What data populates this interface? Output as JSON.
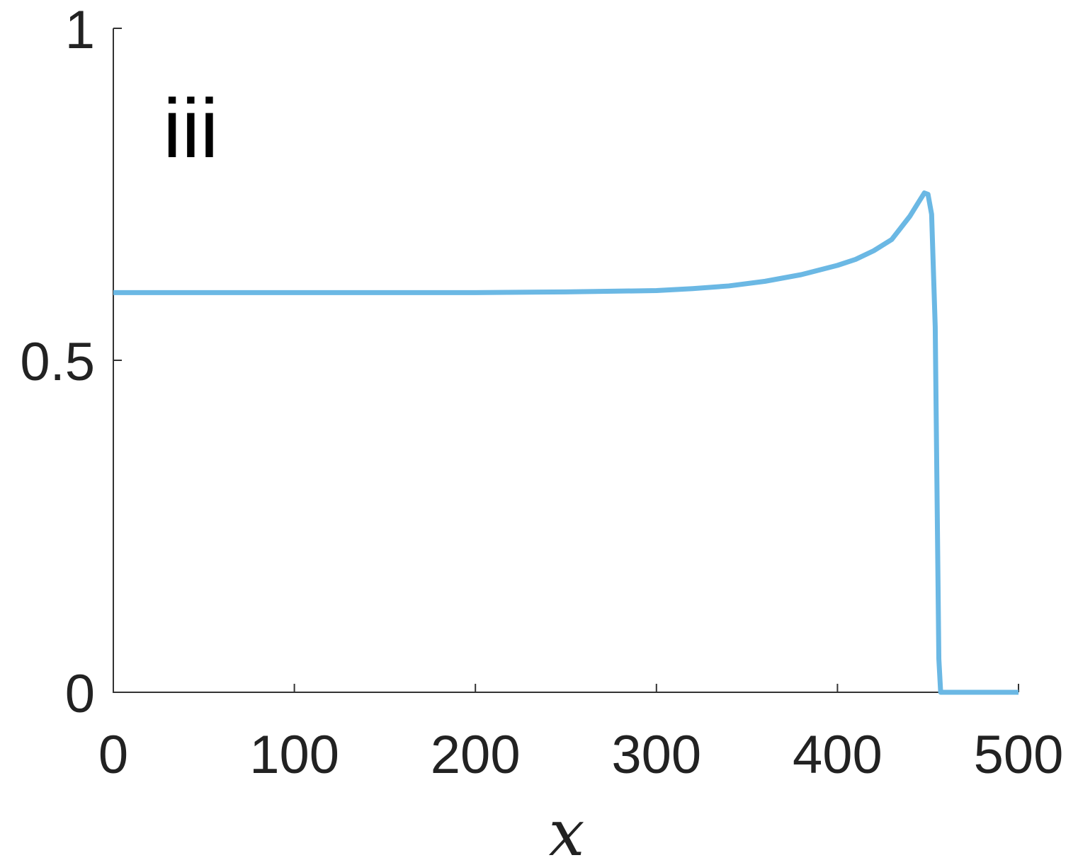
{
  "chart_data": {
    "type": "line",
    "annotation": "iii",
    "x_label": "x",
    "x": [
      0,
      50,
      100,
      150,
      200,
      250,
      300,
      320,
      340,
      360,
      380,
      400,
      410,
      420,
      430,
      440,
      445,
      448,
      450,
      452,
      454,
      455,
      456,
      457,
      470,
      500
    ],
    "series": [
      {
        "color": "#6bb8e4",
        "values": [
          0.602,
          0.602,
          0.602,
          0.602,
          0.602,
          0.603,
          0.605,
          0.608,
          0.612,
          0.619,
          0.629,
          0.643,
          0.652,
          0.665,
          0.682,
          0.717,
          0.739,
          0.752,
          0.75,
          0.72,
          0.55,
          0.3,
          0.05,
          0,
          0,
          0
        ]
      }
    ],
    "xlim": [
      0,
      500
    ],
    "xticks": [
      0,
      100,
      200,
      300,
      400,
      500
    ],
    "ylim": [
      0,
      1
    ],
    "yticks": [
      0,
      0.5,
      1
    ]
  }
}
